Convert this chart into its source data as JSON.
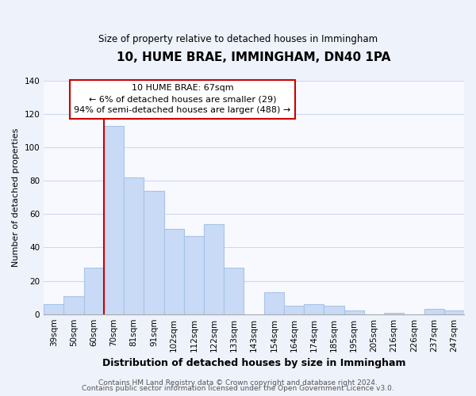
{
  "title": "10, HUME BRAE, IMMINGHAM, DN40 1PA",
  "subtitle": "Size of property relative to detached houses in Immingham",
  "xlabel": "Distribution of detached houses by size in Immingham",
  "ylabel": "Number of detached properties",
  "categories": [
    "39sqm",
    "50sqm",
    "60sqm",
    "70sqm",
    "81sqm",
    "91sqm",
    "102sqm",
    "112sqm",
    "122sqm",
    "133sqm",
    "143sqm",
    "154sqm",
    "164sqm",
    "174sqm",
    "185sqm",
    "195sqm",
    "205sqm",
    "216sqm",
    "226sqm",
    "237sqm",
    "247sqm"
  ],
  "values": [
    6,
    11,
    28,
    113,
    82,
    74,
    51,
    47,
    54,
    28,
    0,
    13,
    5,
    6,
    5,
    2,
    0,
    1,
    0,
    3,
    2
  ],
  "bar_color": "#c8daf5",
  "bar_edge_color": "#a8c4e8",
  "ylim": [
    0,
    140
  ],
  "yticks": [
    0,
    20,
    40,
    60,
    80,
    100,
    120,
    140
  ],
  "marker_label": "10 HUME BRAE: 67sqm",
  "annotation_line1": "← 6% of detached houses are smaller (29)",
  "annotation_line2": "94% of semi-detached houses are larger (488) →",
  "footer1": "Contains HM Land Registry data © Crown copyright and database right 2024.",
  "footer2": "Contains public sector information licensed under the Open Government Licence v3.0.",
  "background_color": "#eef2fb",
  "plot_background_color": "#f7f9ff",
  "grid_color": "#d0d8ee",
  "marker_line_color": "#cc0000",
  "box_edge_color": "#cc0000",
  "box_face_color": "#ffffff",
  "title_fontsize": 11,
  "subtitle_fontsize": 8.5,
  "xlabel_fontsize": 9,
  "ylabel_fontsize": 8,
  "tick_fontsize": 7.5,
  "annotation_fontsize": 8,
  "footer_fontsize": 6.5
}
